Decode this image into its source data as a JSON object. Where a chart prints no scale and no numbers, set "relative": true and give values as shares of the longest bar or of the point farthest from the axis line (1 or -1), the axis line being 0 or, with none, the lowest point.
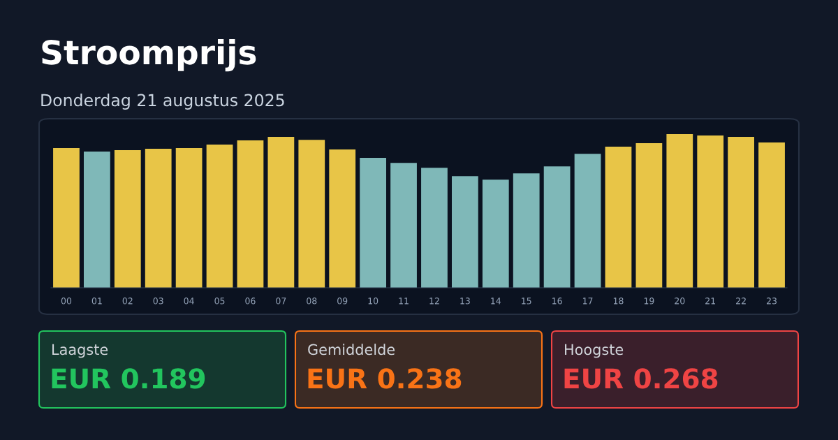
{
  "chart_data": [
    {
      "type": "bar",
      "title": "Stroomprijs",
      "subtitle": "Donderdag 21 augustus 2025",
      "relative": true,
      "categories": [
        "00",
        "01",
        "02",
        "03",
        "04",
        "05",
        "06",
        "07",
        "08",
        "09",
        "10",
        "11",
        "12",
        "13",
        "14",
        "15",
        "16",
        "17",
        "18",
        "19",
        "20",
        "21",
        "22",
        "23"
      ],
      "values": [
        0.909,
        0.886,
        0.895,
        0.904,
        0.909,
        0.932,
        0.959,
        0.982,
        0.963,
        0.9,
        0.845,
        0.813,
        0.781,
        0.726,
        0.703,
        0.744,
        0.79,
        0.872,
        0.918,
        0.941,
        1,
        0.991,
        0.982,
        0.945
      ],
      "colors": [
        "#e8c547",
        "#7fb8b8",
        "#e8c547",
        "#e8c547",
        "#e8c547",
        "#e8c547",
        "#e8c547",
        "#e8c547",
        "#e8c547",
        "#e8c547",
        "#7fb8b8",
        "#7fb8b8",
        "#7fb8b8",
        "#7fb8b8",
        "#7fb8b8",
        "#7fb8b8",
        "#7fb8b8",
        "#7fb8b8",
        "#e8c547",
        "#e8c547",
        "#e8c547",
        "#e8c547",
        "#e8c547",
        "#e8c547"
      ]
    },
    {
      "type": "other",
      "annotations": [
        "Laagste",
        "EUR 0.189",
        "Gemiddelde",
        "EUR 0.238",
        "Hoogste",
        "EUR 0.268"
      ]
    }
  ]
}
